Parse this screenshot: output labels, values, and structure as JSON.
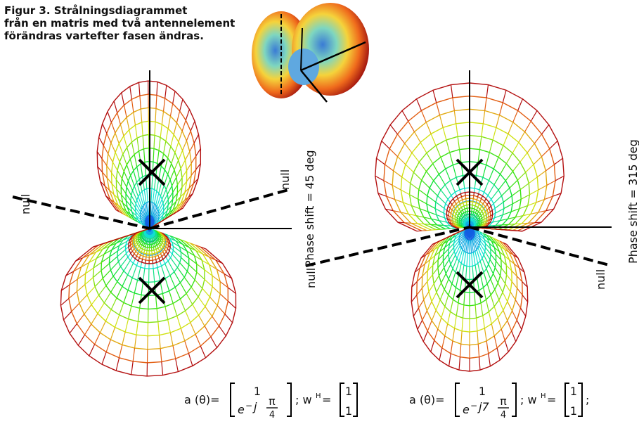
{
  "title": {
    "lines": [
      "Figur 3. Strålningsdiagrammet",
      "från en matris med två antennelement",
      "förändras vartefter fasen ändras."
    ]
  },
  "left_panel": {
    "null_labels": [
      "null",
      "null"
    ],
    "phase_label": "Phase shift = 45 deg",
    "formula": {
      "lhs": "a (θ)=",
      "top": "1",
      "base": "e",
      "exp_sign": "−",
      "exp_var": "j",
      "num": "π",
      "den": "4",
      "sep": "; w",
      "sup": "H",
      "eq": " = ",
      "w1": "1",
      "w2": "1"
    }
  },
  "right_panel": {
    "null_labels": [
      "null",
      "null"
    ],
    "phase_label": "Phase shift = 315 deg",
    "formula": {
      "lhs": "a (θ)=",
      "top": "1",
      "base": "e",
      "exp_sign": "−",
      "exp_var": "j7",
      "num": "π",
      "den": "4",
      "sep": "; w",
      "sup": "H",
      "eq": " = ",
      "w1": "1",
      "w2": "1",
      "end": ";"
    }
  }
}
